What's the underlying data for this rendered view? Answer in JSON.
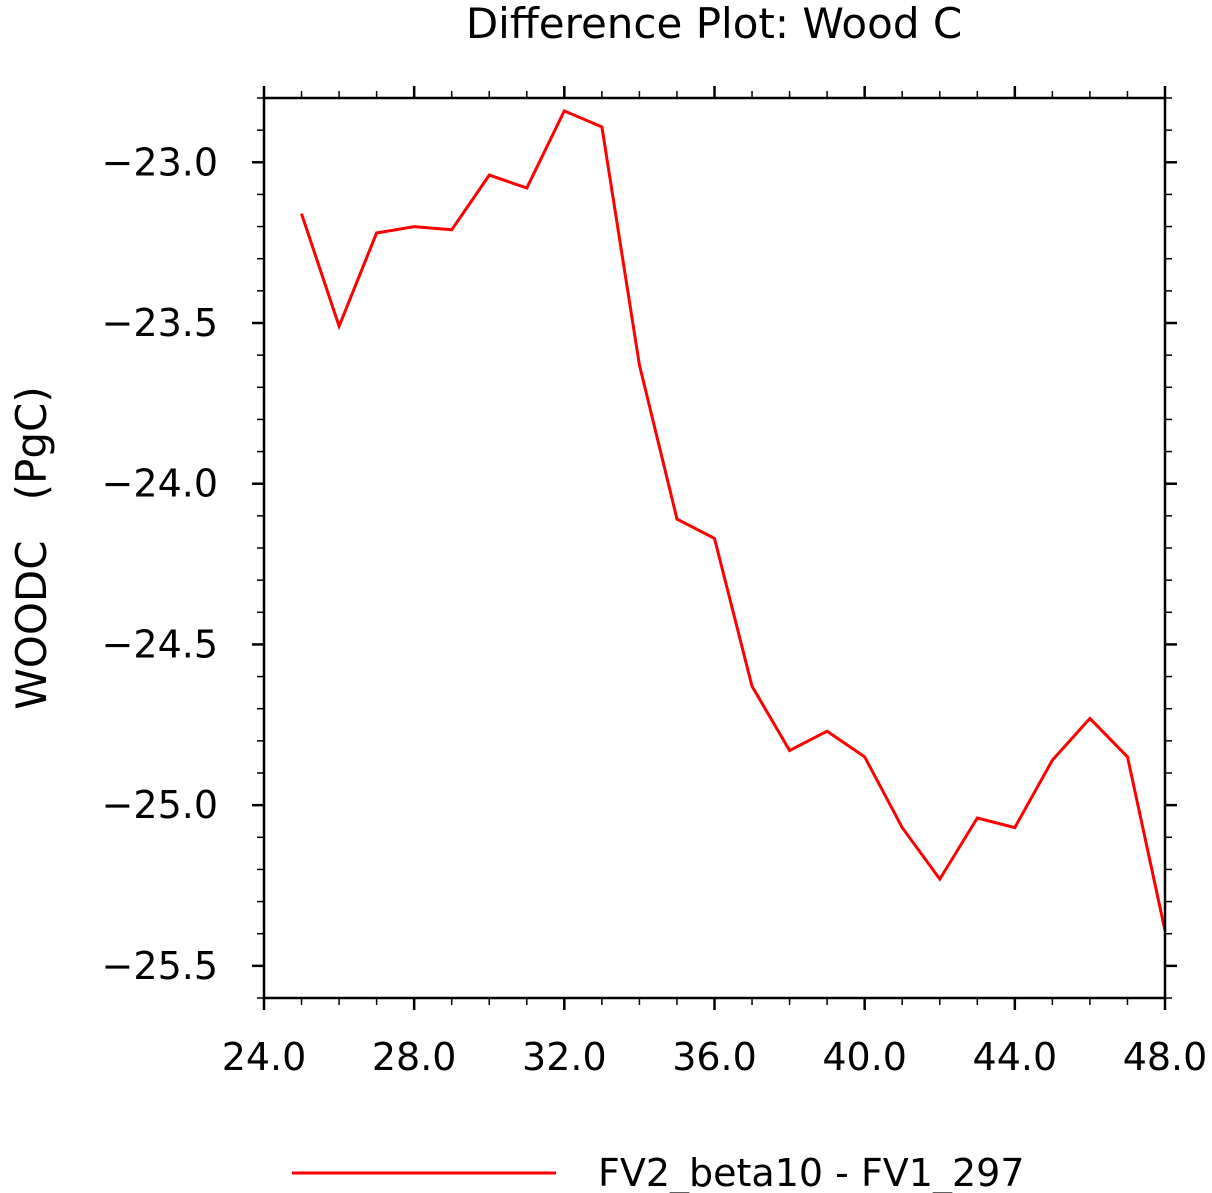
{
  "chart_data": {
    "type": "line",
    "title": "Difference Plot: Wood C",
    "xlabel": "",
    "ylabel": "WOODC   (PgC)",
    "xlim": [
      24.0,
      48.0
    ],
    "ylim": [
      -25.6,
      -22.8
    ],
    "xticks": [
      "24.0",
      "28.0",
      "32.0",
      "36.0",
      "40.0",
      "44.0",
      "48.0"
    ],
    "yticks": [
      "-23.0",
      "-23.5",
      "-24.0",
      "-24.5",
      "-25.0",
      "-25.5"
    ],
    "grid": false,
    "legend_position": "bottom",
    "series": [
      {
        "name": "FV2_beta10 - FV1_297",
        "color": "#ff0000",
        "x": [
          25,
          26,
          27,
          28,
          29,
          30,
          31,
          32,
          33,
          34,
          35,
          36,
          37,
          38,
          39,
          40,
          41,
          42,
          43,
          44,
          45,
          46,
          47,
          48
        ],
        "y": [
          -23.16,
          -23.51,
          -23.22,
          -23.2,
          -23.21,
          -23.04,
          -23.08,
          -22.84,
          -22.89,
          -23.63,
          -24.11,
          -24.17,
          -24.63,
          -24.83,
          -24.77,
          -24.85,
          -25.07,
          -25.23,
          -25.04,
          -25.07,
          -24.86,
          -24.73,
          -24.85,
          -25.39
        ]
      }
    ]
  }
}
